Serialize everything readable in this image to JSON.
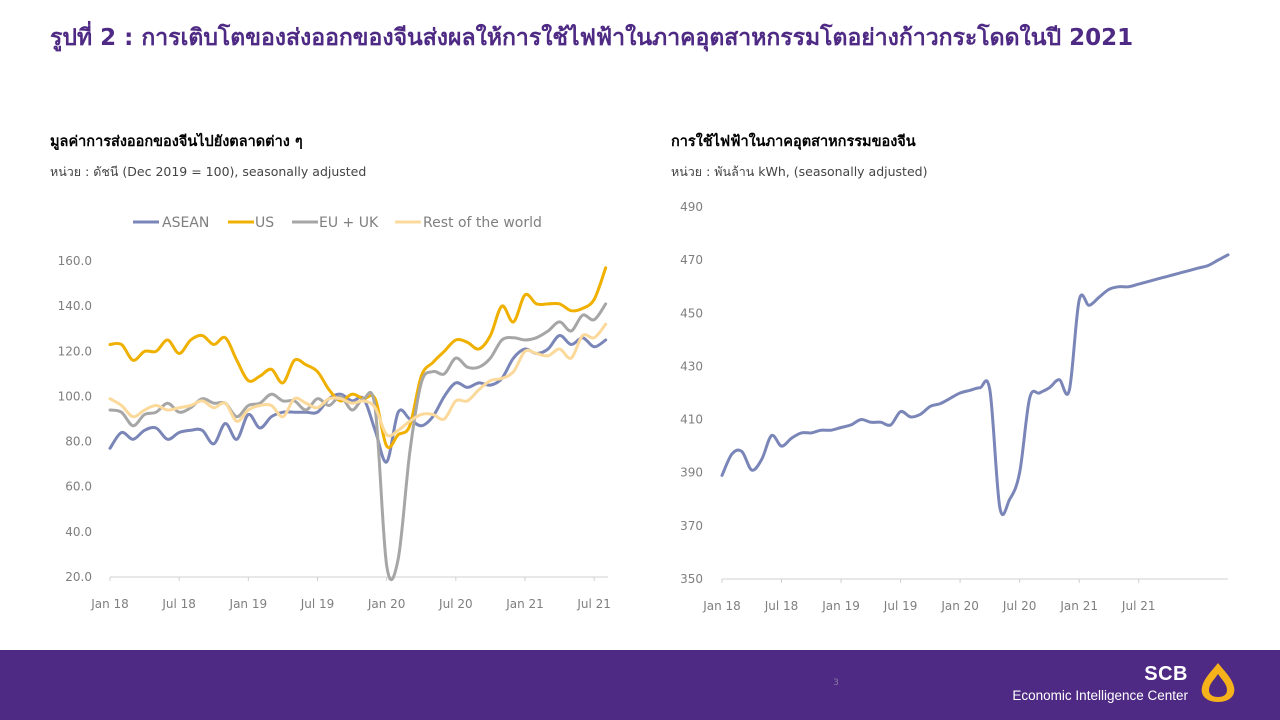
{
  "page": {
    "title": "รูปที่ 2 : การเติบโตของส่งออกของจีนส่งผลให้การใช้ไฟฟ้าในภาคอุตสาหกรรมโตอย่างก้าวกระโดดในปี 2021",
    "page_number": "3",
    "brand_short": "SCB",
    "brand_long": "Economic Intelligence Center"
  },
  "colors": {
    "title": "#4e2a84",
    "footer": "#4e2a84",
    "asean": "#7b86b8",
    "us": "#f0b000",
    "euuk": "#a6a6a6",
    "row": "#fbd99b",
    "logo": "#f5b21b"
  },
  "chart_data": [
    {
      "type": "line",
      "title": "มูลค่าการส่งออกของจีนไปยังตลาดต่าง ๆ",
      "subtitle": "หน่วย : ดัชนี (Dec 2019 = 100), seasonally adjusted",
      "legend_position": "top",
      "x_start": "2018-01",
      "x_tick_labels": [
        "Jan 18",
        "Jul 18",
        "Jan 19",
        "Jul 19",
        "Jan 20",
        "Jul 20",
        "Jan 21",
        "Jul 21"
      ],
      "y_tick_labels": [
        "20.0",
        "40.0",
        "60.0",
        "80.0",
        "100.0",
        "120.0",
        "140.0",
        "160.0"
      ],
      "ylim": [
        20,
        160
      ],
      "grid": false,
      "series": [
        {
          "name": "ASEAN",
          "color": "#7b86b8",
          "values": [
            77,
            84,
            81,
            85,
            86,
            81,
            84,
            85,
            85,
            79,
            88,
            81,
            92,
            86,
            91,
            93,
            93,
            93,
            93,
            99,
            101,
            98,
            99,
            85,
            71,
            93,
            90,
            87,
            91,
            100,
            106,
            104,
            106,
            105,
            108,
            117,
            121,
            119,
            121,
            127,
            123,
            126,
            122,
            125
          ]
        },
        {
          "name": "US",
          "color": "#f0b000",
          "values": [
            123,
            123,
            116,
            120,
            120,
            125,
            119,
            125,
            127,
            123,
            126,
            116,
            107,
            109,
            112,
            106,
            116,
            114,
            111,
            103,
            98,
            101,
            99,
            99,
            78,
            83,
            87,
            109,
            115,
            120,
            125,
            124,
            121,
            127,
            140,
            133,
            145,
            141,
            141,
            141,
            138,
            139,
            143,
            157
          ]
        },
        {
          "name": "EU + UK",
          "color": "#a6a6a6",
          "values": [
            94,
            93,
            87,
            92,
            93,
            97,
            93,
            95,
            99,
            97,
            97,
            91,
            96,
            97,
            101,
            98,
            98,
            94,
            99,
            96,
            100,
            94,
            99,
            95,
            25,
            28,
            75,
            106,
            111,
            110,
            117,
            113,
            113,
            117,
            125,
            126,
            125,
            126,
            129,
            133,
            129,
            136,
            134,
            141
          ]
        },
        {
          "name": "Rest of the world",
          "color": "#fbd99b",
          "values": [
            99,
            96,
            91,
            94,
            96,
            94,
            95,
            96,
            98,
            95,
            97,
            89,
            94,
            96,
            96,
            91,
            99,
            97,
            95,
            99,
            99,
            97,
            98,
            95,
            83,
            85,
            89,
            92,
            92,
            90,
            98,
            98,
            103,
            107,
            108,
            111,
            120,
            119,
            118,
            121,
            117,
            127,
            126,
            132
          ]
        }
      ]
    },
    {
      "type": "line",
      "title": "การใช้ไฟฟ้าในภาคอุตสาหกรรมของจีน",
      "subtitle": "หน่วย : พันล้าน kWh, (seasonally adjusted)",
      "x_start": "2018-01",
      "x_tick_labels": [
        "Jan 18",
        "Jul 18",
        "Jan 19",
        "Jul 19",
        "Jan 20",
        "Jul 20",
        "Jan 21",
        "Jul 21"
      ],
      "y_tick_labels": [
        "350",
        "370",
        "390",
        "410",
        "430",
        "450",
        "470",
        "490"
      ],
      "ylim": [
        350,
        490
      ],
      "grid": false,
      "series": [
        {
          "color": "#7b86b8",
          "values": [
            389,
            397,
            398,
            391,
            395,
            404,
            400,
            403,
            405,
            405,
            406,
            406,
            407,
            408,
            410,
            409,
            409,
            408,
            413,
            411,
            412,
            415,
            416,
            418,
            420,
            421,
            422,
            421,
            377,
            380,
            390,
            418,
            420,
            422,
            425,
            421,
            455,
            453,
            456,
            459,
            460,
            460,
            461,
            462,
            463,
            464,
            465,
            466,
            467,
            468,
            470,
            472
          ]
        }
      ]
    }
  ]
}
